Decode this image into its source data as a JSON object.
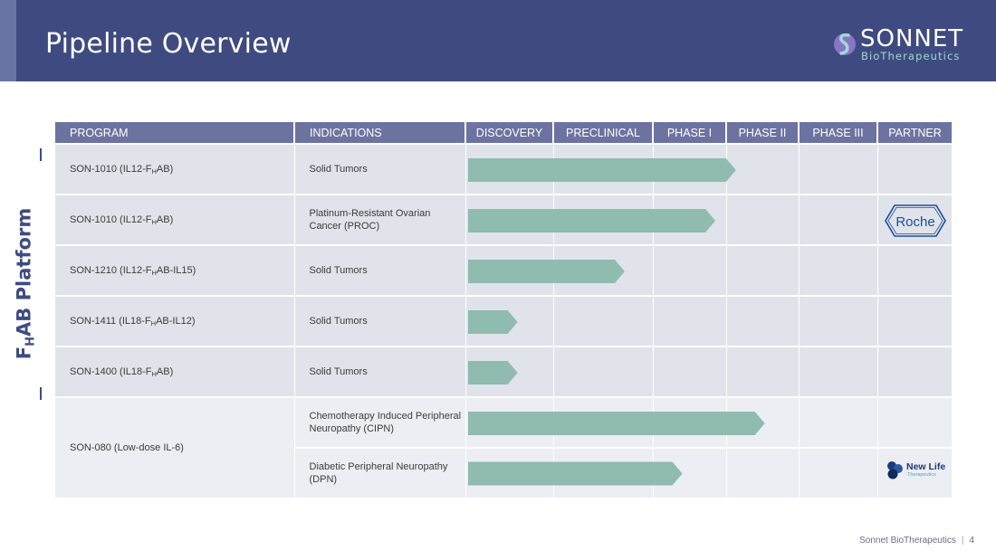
{
  "header": {
    "title": "Pipeline Overview",
    "logo_name": "SONNET",
    "logo_sub": "BioTherapeutics",
    "bg_color": "#3f4b80"
  },
  "table": {
    "columns": [
      "PROGRAM",
      "INDICATIONS",
      "DISCOVERY",
      "PRECLINICAL",
      "PHASE I",
      "PHASE II",
      "PHASE III",
      "PARTNER"
    ],
    "rows": [
      {
        "program_base": "SON-1010 (IL12-F",
        "program_sub": "H",
        "program_tail": "AB)",
        "indication": "Solid Tumors",
        "partner": ""
      },
      {
        "program_base": "SON-1010 (IL12-F",
        "program_sub": "H",
        "program_tail": "AB)",
        "indication": "Platinum-Resistant Ovarian Cancer (PROC)",
        "partner": "Roche"
      },
      {
        "program_base": "SON-1210 (IL12-F",
        "program_sub": "H",
        "program_tail": "AB-IL15)",
        "indication": "Solid Tumors",
        "partner": ""
      },
      {
        "program_base": "SON-1411 (IL18-F",
        "program_sub": "H",
        "program_tail": "AB-IL12)",
        "indication": "Solid Tumors",
        "partner": ""
      },
      {
        "program_base": "SON-1400 (IL18-F",
        "program_sub": "H",
        "program_tail": "AB)",
        "indication": "Solid Tumors",
        "partner": ""
      },
      {
        "program_base": "SON-080 (Low-dose IL-6)",
        "program_sub": "",
        "program_tail": "",
        "indication": "Chemotherapy Induced Peripheral Neuropathy (CIPN)",
        "partner": ""
      },
      {
        "program_base": "",
        "program_sub": "",
        "program_tail": "",
        "indication": "Diabetic Peripheral Neuropathy (DPN)",
        "partner": "New Life"
      }
    ],
    "progress": [
      0.65,
      0.6,
      0.38,
      0.12,
      0.12,
      0.72,
      0.52
    ],
    "bar_color": "#8fbbb1"
  },
  "platform": {
    "label_a": "F",
    "label_sub": "H",
    "label_b": "AB Platform"
  },
  "partners": {
    "roche": "Roche",
    "newlife": "New Life",
    "newlife_sub": "Therapeutics"
  },
  "footer": {
    "company": "Sonnet BioTherapeutics",
    "page": "4"
  }
}
